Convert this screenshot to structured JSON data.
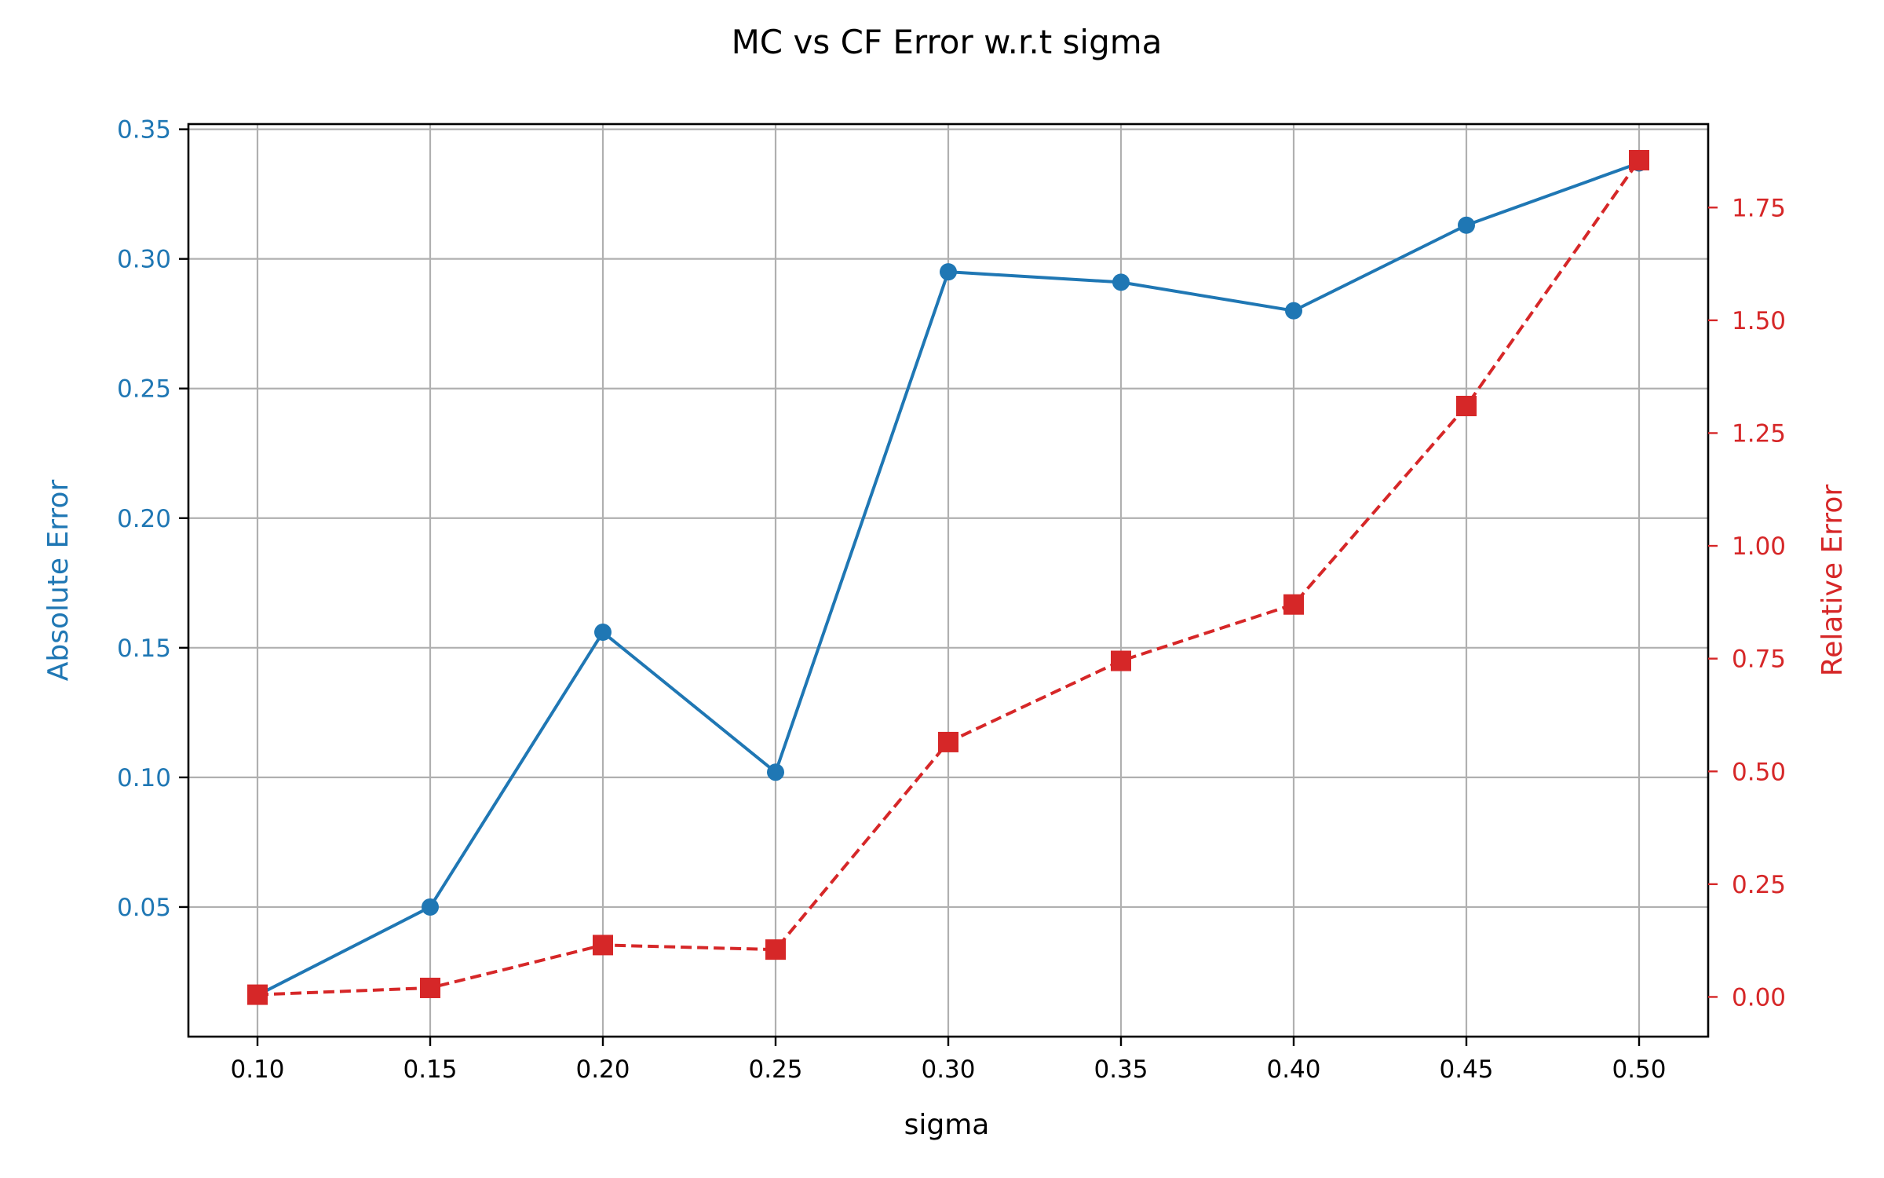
{
  "chart_data": {
    "type": "line",
    "title": "MC vs CF Error w.r.t sigma",
    "xlabel": "sigma",
    "ylabel_left": "Absolute Error",
    "ylabel_right": "Relative Error",
    "x": [
      0.1,
      0.15,
      0.2,
      0.25,
      0.3,
      0.35,
      0.4,
      0.45,
      0.5
    ],
    "x_ticks": [
      "0.10",
      "0.15",
      "0.20",
      "0.25",
      "0.30",
      "0.35",
      "0.40",
      "0.45",
      "0.50"
    ],
    "xlim": [
      0.08,
      0.52
    ],
    "left_axis": {
      "ylim": [
        0.0,
        0.352
      ],
      "ticks": [
        0.05,
        0.1,
        0.15,
        0.2,
        0.25,
        0.3,
        0.35
      ],
      "tick_labels": [
        "0.05",
        "0.10",
        "0.15",
        "0.20",
        "0.25",
        "0.30",
        "0.35"
      ],
      "color": "#1f77b4"
    },
    "right_axis": {
      "ylim": [
        -0.088,
        1.935
      ],
      "ticks": [
        0.0,
        0.25,
        0.5,
        0.75,
        1.0,
        1.25,
        1.5,
        1.75
      ],
      "tick_labels": [
        "0.00",
        "0.25",
        "0.50",
        "0.75",
        "1.00",
        "1.25",
        "1.50",
        "1.75"
      ],
      "color": "#d62728"
    },
    "series": [
      {
        "axis": "left",
        "color": "#1f77b4",
        "linestyle": "solid",
        "marker": "circle",
        "values": [
          0.016,
          0.05,
          0.156,
          0.102,
          0.295,
          0.291,
          0.28,
          0.313,
          0.337
        ]
      },
      {
        "axis": "right",
        "color": "#d62728",
        "linestyle": "dashed",
        "marker": "square",
        "values": [
          0.005,
          0.02,
          0.115,
          0.105,
          0.565,
          0.745,
          0.87,
          1.31,
          1.855
        ]
      }
    ],
    "grid": true
  }
}
